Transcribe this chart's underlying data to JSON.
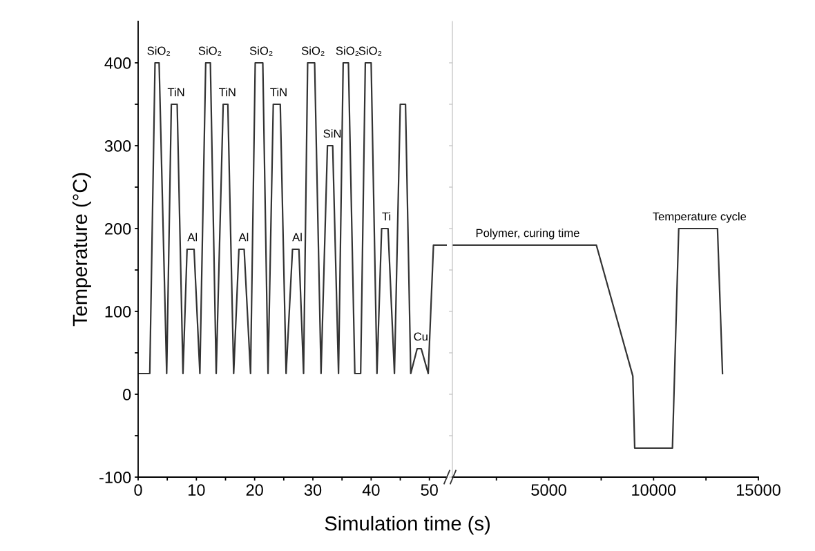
{
  "chart_data": [
    {
      "type": "line",
      "xlabel": "Simulation time (s)",
      "ylabel": "Temperature (°C)",
      "xlim": [
        0,
        53
      ],
      "ylim": [
        -100,
        450
      ],
      "xticks": [
        0,
        {
          "value": 5,
          "label": null
        },
        10,
        {
          "value": 15,
          "label": null
        },
        20,
        {
          "value": 25,
          "label": null
        },
        30,
        {
          "value": 35,
          "label": null
        },
        40,
        {
          "value": 45,
          "label": null
        },
        50
      ],
      "yticks": [
        -100,
        {
          "value": -50,
          "label": null
        },
        0,
        {
          "value": 50,
          "label": null
        },
        100,
        {
          "value": 150,
          "label": null
        },
        200,
        {
          "value": 250,
          "label": null
        },
        300,
        {
          "value": 350,
          "label": null
        },
        400
      ],
      "grid": false,
      "legend": false,
      "marker": "none",
      "line_style": "solid",
      "series": [
        {
          "color": "#333333",
          "x": [
            0,
            2.0,
            2.9,
            3.6,
            4.9,
            5.7,
            6.7,
            7.7,
            8.4,
            9.6,
            10.6,
            11.6,
            12.4,
            13.4,
            14.6,
            15.4,
            16.4,
            17.3,
            18.2,
            19.3,
            20.1,
            21.4,
            22.3,
            23.2,
            24.4,
            25.4,
            26.5,
            27.6,
            28.4,
            29.1,
            30.3,
            31.4,
            32.5,
            33.4,
            34.4,
            35.2,
            36.1,
            37.2,
            38.2,
            39.0,
            40.0,
            41.0,
            41.8,
            42.9,
            44.0,
            45.0,
            45.9,
            46.8,
            47.9,
            48.6,
            49.8,
            50.7,
            53
          ],
          "values": [
            25,
            25,
            400,
            400,
            25,
            350,
            350,
            25,
            175,
            175,
            25,
            400,
            400,
            25,
            350,
            350,
            25,
            175,
            175,
            25,
            400,
            400,
            25,
            350,
            350,
            25,
            175,
            175,
            25,
            400,
            400,
            25,
            300,
            300,
            25,
            400,
            400,
            25,
            25,
            400,
            400,
            25,
            200,
            200,
            25,
            350,
            350,
            25,
            55,
            55,
            25,
            180,
            180
          ]
        }
      ],
      "annotations": [
        {
          "text": "SiO₂",
          "x": 3.2,
          "y": 400
        },
        {
          "text": "TiN",
          "x": 6.2,
          "y": 350
        },
        {
          "text": "Al",
          "x": 9.0,
          "y": 175
        },
        {
          "text": "SiO₂",
          "x": 12.0,
          "y": 400
        },
        {
          "text": "TiN",
          "x": 15.0,
          "y": 350
        },
        {
          "text": "Al",
          "x": 17.8,
          "y": 175
        },
        {
          "text": "SiO₂",
          "x": 20.8,
          "y": 400
        },
        {
          "text": "TiN",
          "x": 23.8,
          "y": 350
        },
        {
          "text": "Al",
          "x": 27.0,
          "y": 175
        },
        {
          "text": "SiO₂",
          "x": 29.7,
          "y": 400
        },
        {
          "text": "SiN",
          "x": 33.0,
          "y": 300
        },
        {
          "text": "SiO₂",
          "x": 35.6,
          "y": 400
        },
        {
          "text": "SiO₂",
          "x": 39.5,
          "y": 400
        },
        {
          "text": "Ti",
          "x": 42.3,
          "y": 200
        },
        {
          "text": "Cu",
          "x": 48.2,
          "y": 55
        }
      ]
    },
    {
      "type": "line",
      "xlim": [
        400,
        15000
      ],
      "ylim": [
        -100,
        450
      ],
      "tick_labels": "x",
      "xticks": [
        {
          "value": 2500,
          "label": null
        },
        5000,
        {
          "value": 7500,
          "label": null
        },
        10000,
        {
          "value": 12500,
          "label": null
        },
        15000
      ],
      "yticks": [
        -100,
        {
          "value": -50,
          "label": null
        },
        0,
        {
          "value": 50,
          "label": null
        },
        100,
        {
          "value": 150,
          "label": null
        },
        200,
        {
          "value": 250,
          "label": null
        },
        300,
        {
          "value": 350,
          "label": null
        },
        400
      ],
      "grid": false,
      "legend": false,
      "marker": "none",
      "line_style": "solid",
      "series": [
        {
          "color": "#333333",
          "x": [
            400,
            7270,
            9010,
            9100,
            10900,
            11200,
            13050,
            13290
          ],
          "values": [
            180,
            180,
            22,
            -65,
            -65,
            200,
            200,
            25
          ]
        }
      ],
      "annotations": [
        {
          "text": "Polymer, curing time",
          "x": 3900,
          "y": 180
        },
        {
          "text": "Temperature cycle",
          "x": 12100,
          "y": 200
        }
      ]
    }
  ]
}
